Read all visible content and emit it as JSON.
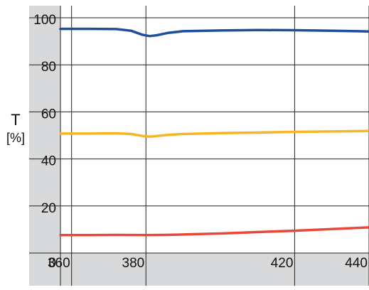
{
  "chart_data": {
    "type": "line",
    "ylabel": "T",
    "yunit": "[%]",
    "xlim": [
      357,
      440
    ],
    "ylim": [
      0,
      100
    ],
    "yticks": [
      0,
      20,
      40,
      60,
      80,
      100
    ],
    "xticks": [
      360,
      380,
      420,
      440
    ],
    "grid": true,
    "series": [
      {
        "color": "#1f4e9a",
        "x": [
          357,
          365,
          372,
          376,
          379,
          381,
          383,
          386,
          390,
          400,
          410,
          420,
          430,
          440
        ],
        "y": [
          95.3,
          95.3,
          95.2,
          94.5,
          92.8,
          92.2,
          92.6,
          93.6,
          94.3,
          94.6,
          94.8,
          94.7,
          94.5,
          94.2
        ]
      },
      {
        "color": "#f6b626",
        "x": [
          357,
          365,
          372,
          376,
          379,
          381,
          383,
          386,
          390,
          400,
          410,
          420,
          430,
          440
        ],
        "y": [
          50.8,
          50.8,
          50.9,
          50.6,
          49.8,
          49.5,
          49.8,
          50.2,
          50.6,
          51.0,
          51.2,
          51.5,
          51.7,
          51.9
        ]
      },
      {
        "color": "#e8473b",
        "x": [
          357,
          365,
          372,
          380,
          385,
          390,
          400,
          410,
          420,
          430,
          440
        ],
        "y": [
          7.6,
          7.6,
          7.7,
          7.6,
          7.7,
          7.9,
          8.3,
          8.9,
          9.5,
          10.2,
          10.9
        ]
      }
    ]
  }
}
